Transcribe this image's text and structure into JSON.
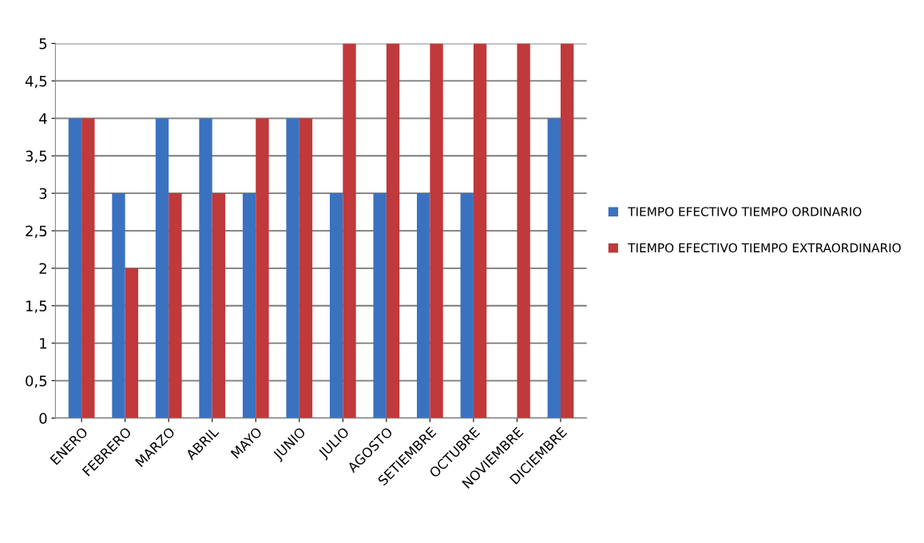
{
  "chart_data": {
    "type": "bar",
    "categories": [
      "ENERO",
      "FEBRERO",
      "MARZO",
      "ABRIL",
      "MAYO",
      "JUNIO",
      "JULIO",
      "AGOSTO",
      "SETIEMBRE",
      "OCTUBRE",
      "NOVIEMBRE",
      "DICIEMBRE"
    ],
    "series": [
      {
        "name": "TIEMPO EFECTIVO TIEMPO ORDINARIO",
        "color": "#3a72c0",
        "values": [
          4,
          3,
          4,
          4,
          3,
          4,
          3,
          3,
          3,
          3,
          null,
          4
        ]
      },
      {
        "name": "TIEMPO EFECTIVO TIEMPO EXTRAORDINARIO",
        "color": "#c0393b",
        "values": [
          4,
          2,
          3,
          3,
          4,
          4,
          5,
          5,
          5,
          5,
          5,
          5
        ]
      }
    ],
    "ylim": [
      0,
      5
    ],
    "yticks": [
      0,
      {
        "value": 0.5,
        "label": "0,5"
      },
      1,
      {
        "value": 1.5,
        "label": "1,5"
      },
      2,
      {
        "value": 2.5,
        "label": "2,5"
      },
      3,
      {
        "value": 3.5,
        "label": "3,5"
      },
      4,
      {
        "value": 4.5,
        "label": "4,5"
      },
      5
    ],
    "grid": "y",
    "legend": "right"
  }
}
